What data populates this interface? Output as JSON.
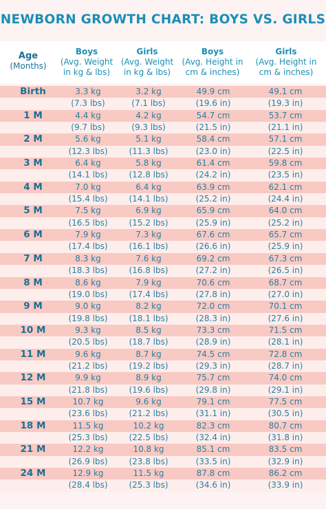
{
  "title": "NEWBORN GROWTH CHART: BOYS VS. GIRLS",
  "header": {
    "age": [
      "Age",
      "(Months)"
    ],
    "boys_weight": [
      "Boys",
      "(Avg. Weight",
      "in kg & lbs)"
    ],
    "girls_weight": [
      "Girls",
      "(Avg. Weight",
      "in kg & lbs)"
    ],
    "boys_height": [
      "Boys",
      "(Avg. Height in",
      "cm & inches)"
    ],
    "girls_height": [
      "Girls",
      "(Avg. Height in",
      "cm & inches)"
    ]
  },
  "rows": [
    {
      "age": "Birth",
      "bw_kg": "3.3 kg",
      "bw_lbs": "(7.3 lbs)",
      "gw_kg": "3.2 kg",
      "gw_lbs": "(7.1 lbs)",
      "bh_cm": "49.9 cm",
      "bh_in": "(19.6 in)",
      "gh_cm": "49.1 cm",
      "gh_in": "(19.3 in)"
    },
    {
      "age": "1 M",
      "bw_kg": "4.4 kg",
      "bw_lbs": "(9.7 lbs)",
      "gw_kg": "4.2 kg",
      "gw_lbs": "(9.3 lbs)",
      "bh_cm": "54.7 cm",
      "bh_in": "(21.5 in)",
      "gh_cm": "53.7 cm",
      "gh_in": "(21.1 in)"
    },
    {
      "age": "2 M",
      "bw_kg": "5.6 kg",
      "bw_lbs": "(12.3 lbs)",
      "gw_kg": "5.1 kg",
      "gw_lbs": "(11.3 lbs)",
      "bh_cm": "58.4 cm",
      "bh_in": "(23.0 in)",
      "gh_cm": "57.1 cm",
      "gh_in": "(22.5 in)"
    },
    {
      "age": "3 M",
      "bw_kg": "6.4 kg",
      "bw_lbs": "(14.1 lbs)",
      "gw_kg": "5.8 kg",
      "gw_lbs": "(12.8 lbs)",
      "bh_cm": "61.4 cm",
      "bh_in": "(24.2 in)",
      "gh_cm": "59.8 cm",
      "gh_in": "(23.5 in)"
    },
    {
      "age": "4 M",
      "bw_kg": "7.0 kg",
      "bw_lbs": "(15.4 lbs)",
      "gw_kg": "6.4 kg",
      "gw_lbs": "(14.1 lbs)",
      "bh_cm": "63.9 cm",
      "bh_in": "(25.2 in)",
      "gh_cm": "62.1 cm",
      "gh_in": "(24.4 in)"
    },
    {
      "age": "5 M",
      "bw_kg": "7.5 kg",
      "bw_lbs": "(16.5 lbs)",
      "gw_kg": "6.9 kg",
      "gw_lbs": "(15.2 lbs)",
      "bh_cm": "65.9 cm",
      "bh_in": "(25.9 in)",
      "gh_cm": "64.0 cm",
      "gh_in": "(25.2 in)"
    },
    {
      "age": "6 M",
      "bw_kg": "7.9 kg",
      "bw_lbs": "(17.4 lbs)",
      "gw_kg": "7.3 kg",
      "gw_lbs": "(16.1 lbs)",
      "bh_cm": "67.6 cm",
      "bh_in": "(26.6 in)",
      "gh_cm": "65.7 cm",
      "gh_in": "(25.9 in)"
    },
    {
      "age": "7 M",
      "bw_kg": "8.3 kg",
      "bw_lbs": "(18.3 lbs)",
      "gw_kg": "7.6 kg",
      "gw_lbs": "(16.8 lbs)",
      "bh_cm": "69.2 cm",
      "bh_in": "(27.2 in)",
      "gh_cm": "67.3 cm",
      "gh_in": "(26.5 in)"
    },
    {
      "age": "8 M",
      "bw_kg": "8.6 kg",
      "bw_lbs": "(19.0 lbs)",
      "gw_kg": "7.9 kg",
      "gw_lbs": "(17.4 lbs)",
      "bh_cm": "70.6 cm",
      "bh_in": "(27.8 in)",
      "gh_cm": "68.7 cm",
      "gh_in": "(27.0 in)"
    },
    {
      "age": "9 M",
      "bw_kg": "9.0 kg",
      "bw_lbs": "(19.8 lbs)",
      "gw_kg": "8.2 kg",
      "gw_lbs": "(18.1 lbs)",
      "bh_cm": "72.0 cm",
      "bh_in": "(28.3 in)",
      "gh_cm": "70.1 cm",
      "gh_in": "(27.6 in)"
    },
    {
      "age": "10 M",
      "bw_kg": "9.3 kg",
      "bw_lbs": "(20.5 lbs)",
      "gw_kg": "8.5 kg",
      "gw_lbs": "(18.7 lbs)",
      "bh_cm": "73.3 cm",
      "bh_in": "(28.9 in)",
      "gh_cm": "71.5 cm",
      "gh_in": "(28.1 in)"
    },
    {
      "age": "11 M",
      "bw_kg": "9.6 kg",
      "bw_lbs": "(21.2 lbs)",
      "gw_kg": "8.7 kg",
      "gw_lbs": "(19.2 lbs)",
      "bh_cm": "74.5 cm",
      "bh_in": "(29.3 in)",
      "gh_cm": "72.8 cm",
      "gh_in": "(28.7 in)"
    },
    {
      "age": "12 M",
      "bw_kg": "9.9 kg",
      "bw_lbs": "(21.8 lbs)",
      "gw_kg": "8.9 kg",
      "gw_lbs": "(19.6 lbs)",
      "bh_cm": "75.7 cm",
      "bh_in": "(29.8 in)",
      "gh_cm": "74.0 cm",
      "gh_in": "(29.1 in)"
    },
    {
      "age": "15 M",
      "bw_kg": "10.7 kg",
      "bw_lbs": "(23.6 lbs)",
      "gw_kg": "9.6 kg",
      "gw_lbs": "(21.2 lbs)",
      "bh_cm": "79.1 cm",
      "bh_in": "(31.1 in)",
      "gh_cm": "77.5 cm",
      "gh_in": "(30.5 in)"
    },
    {
      "age": "18 M",
      "bw_kg": "11.5 kg",
      "bw_lbs": "(25.3 lbs)",
      "gw_kg": "10.2 kg",
      "gw_lbs": "(22.5 lbs)",
      "bh_cm": "82.3 cm",
      "bh_in": "(32.4 in)",
      "gh_cm": "80.7 cm",
      "gh_in": "(31.8 in)"
    },
    {
      "age": "21 M",
      "bw_kg": "12.2 kg",
      "bw_lbs": "(26.9 lbs)",
      "gw_kg": "10.8 kg",
      "gw_lbs": "(23.8 lbs)",
      "bh_cm": "85.1 cm",
      "bh_in": "(33.5 in)",
      "gh_cm": "83.5 cm",
      "gh_in": "(32.9 in)"
    },
    {
      "age": "24 M",
      "bw_kg": "12.9 kg",
      "bw_lbs": "(28.4 lbs)",
      "gw_kg": "11.5 kg",
      "gw_lbs": "(25.3 lbs)",
      "bh_cm": "87.8 cm",
      "bh_in": "(34.6 in)",
      "gh_cm": "86.2 cm",
      "gh_in": "(33.9 in)"
    }
  ]
}
